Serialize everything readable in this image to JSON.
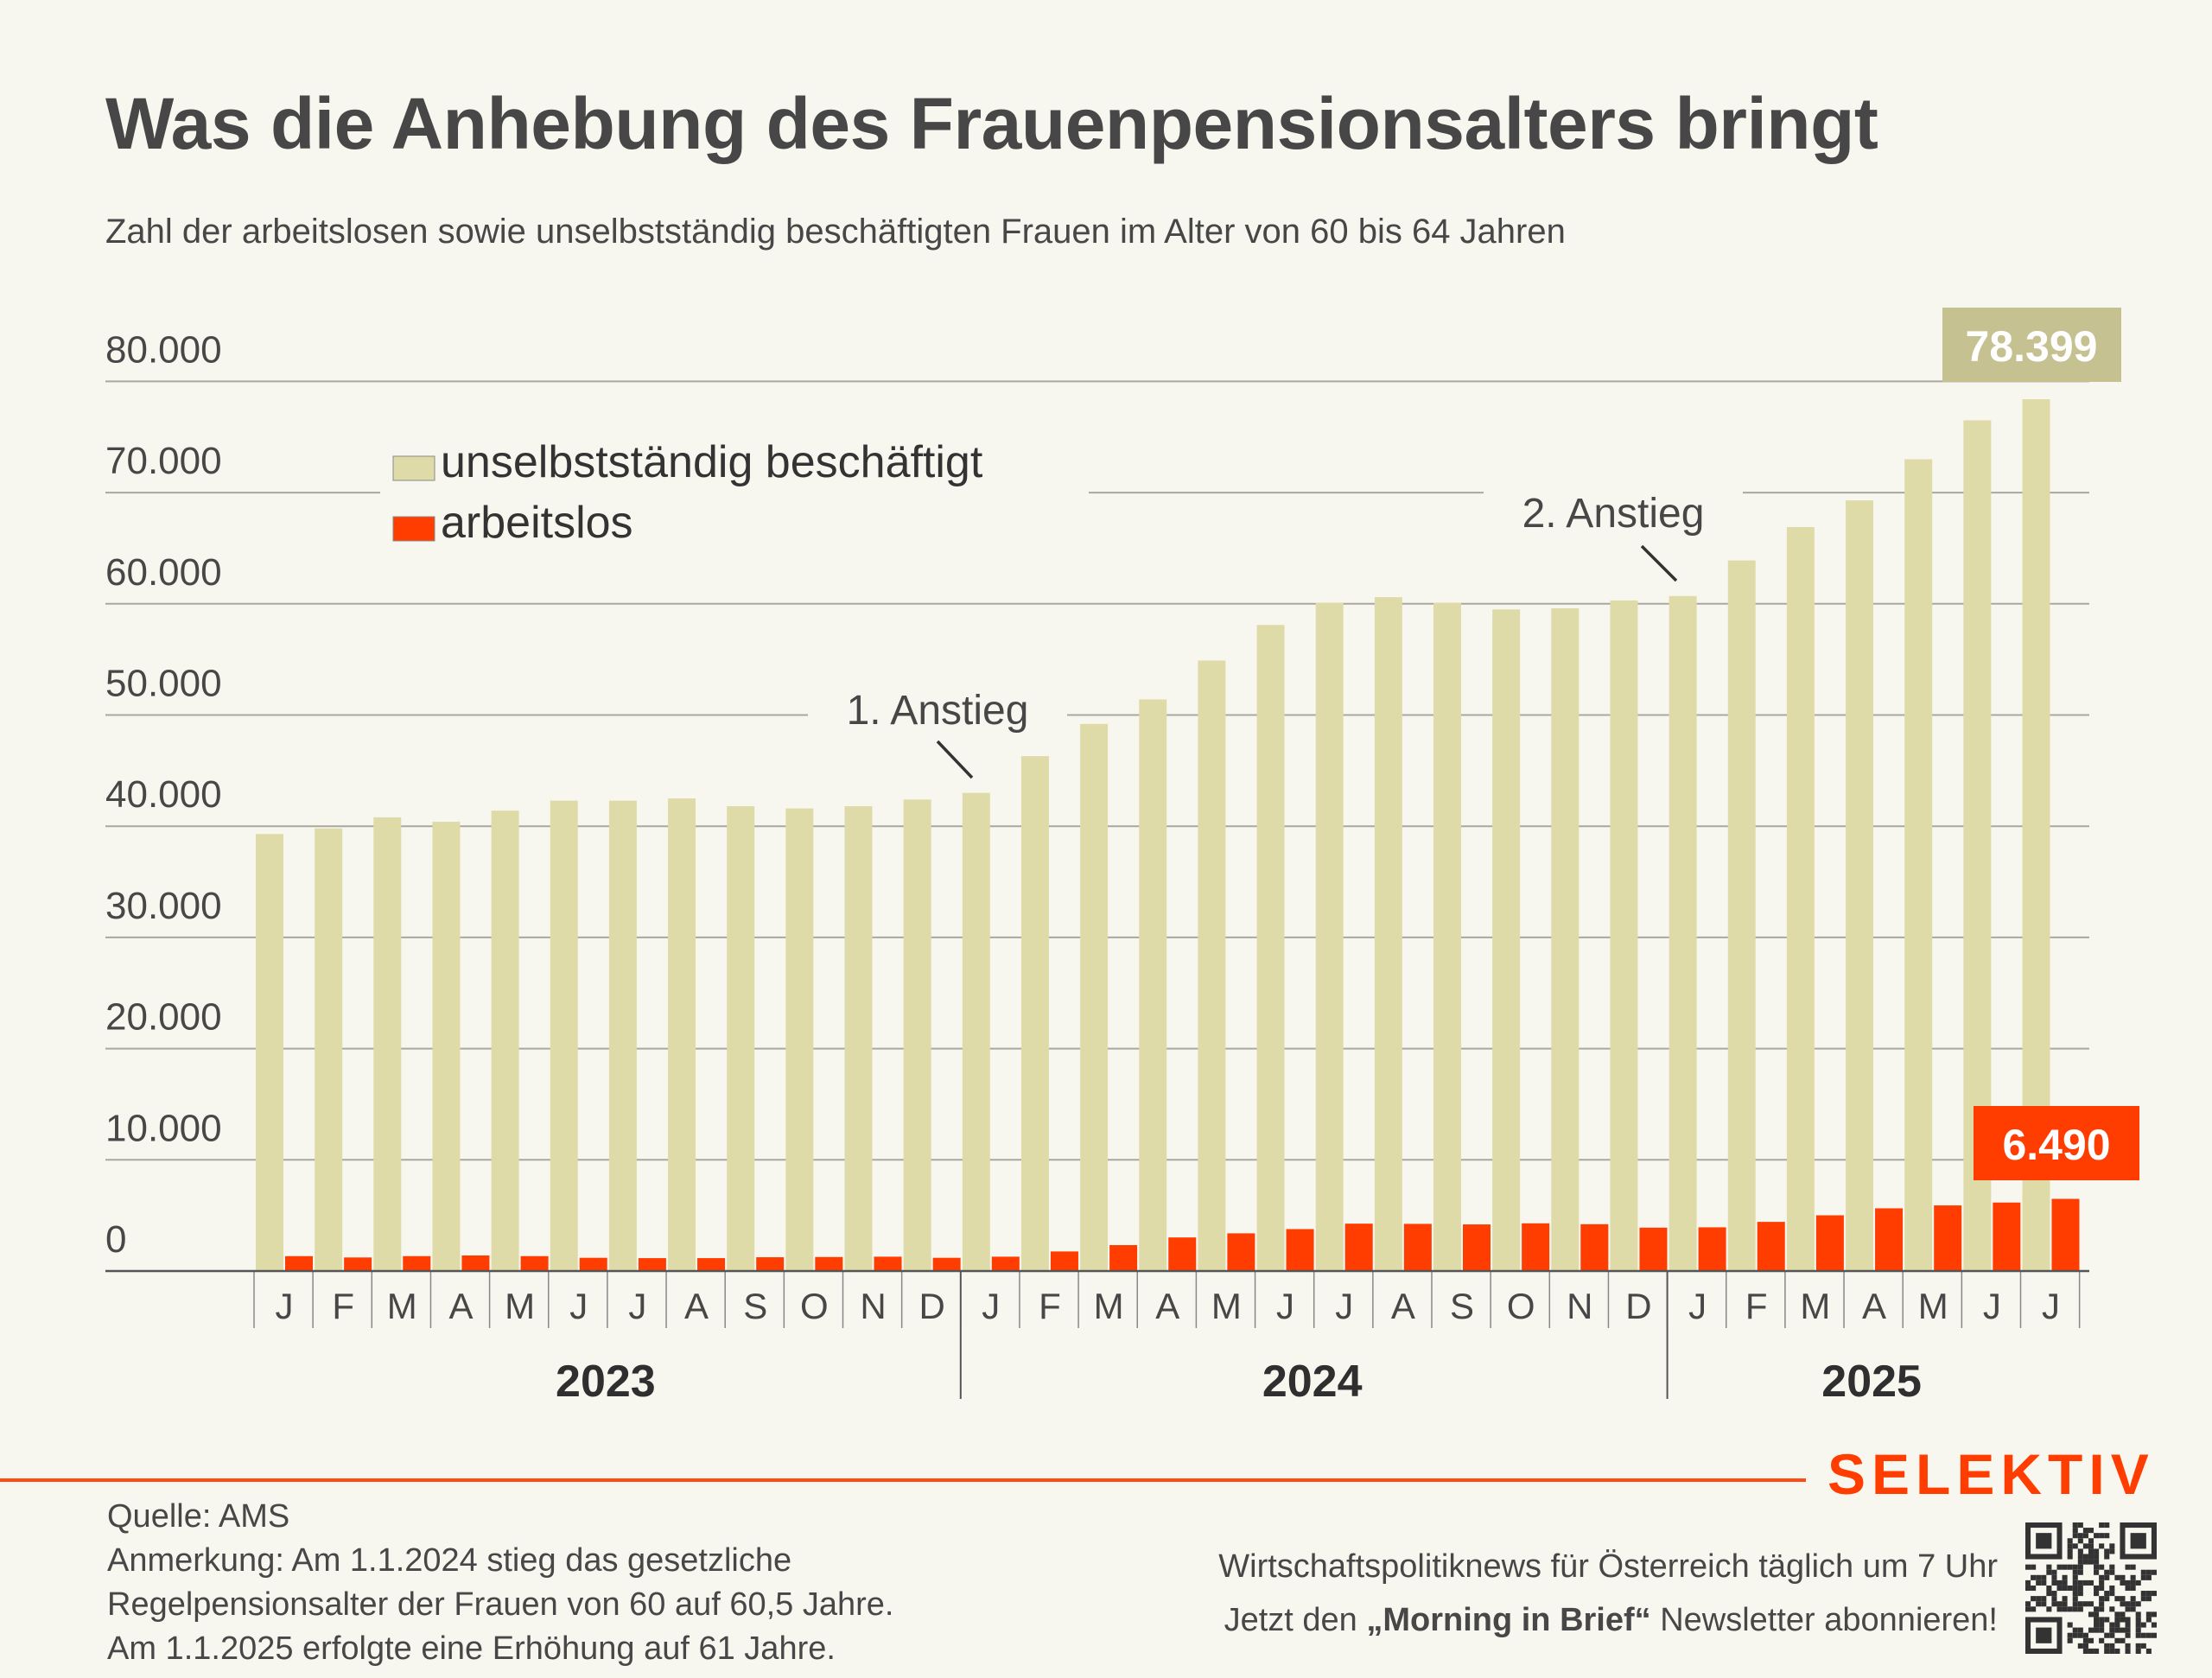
{
  "title": "Was die Anhebung des Frauenpensionsalters bringt",
  "subtitle": "Zahl der arbeitslosen sowie unselbstständig beschäftigten Frauen im Alter von 60 bis 64 Jahren",
  "colors": {
    "employed": "#dfdba9",
    "unemployed": "#ff3d00",
    "employed_label_bg": "#c5c190",
    "brand": "#ff3d00",
    "background": "#f8f7ef"
  },
  "chart_data": {
    "type": "bar",
    "title": "Was die Anhebung des Frauenpensionsalters bringt",
    "xlabel": "",
    "ylabel": "",
    "ylim": [
      0,
      80000
    ],
    "yticks": [
      0,
      10000,
      20000,
      30000,
      40000,
      50000,
      60000,
      70000,
      80000
    ],
    "ytick_labels": [
      "0",
      "10.000",
      "20.000",
      "30.000",
      "40.000",
      "50.000",
      "60.000",
      "70.000",
      "80.000"
    ],
    "grid": true,
    "legend_position": "top-left",
    "categories": [
      "J",
      "F",
      "M",
      "A",
      "M",
      "J",
      "J",
      "A",
      "S",
      "O",
      "N",
      "D",
      "J",
      "F",
      "M",
      "A",
      "M",
      "J",
      "J",
      "A",
      "S",
      "O",
      "N",
      "D",
      "J",
      "F",
      "M",
      "A",
      "M",
      "J",
      "J"
    ],
    "year_groups": [
      {
        "label": "2023",
        "start": 0,
        "end": 11
      },
      {
        "label": "2024",
        "start": 12,
        "end": 23
      },
      {
        "label": "2025",
        "start": 24,
        "end": 30
      }
    ],
    "series": [
      {
        "name": "unselbstständig beschäftigt",
        "values": [
          39300,
          39800,
          40800,
          40400,
          41400,
          42300,
          42300,
          42500,
          41800,
          41600,
          41800,
          42400,
          43000,
          46300,
          49200,
          51400,
          54900,
          58100,
          60100,
          60600,
          60100,
          59500,
          59600,
          60300,
          60700,
          63900,
          66900,
          69300,
          73000,
          76500,
          78399
        ]
      },
      {
        "name": "arbeitslos",
        "values": [
          1340,
          1220,
          1340,
          1400,
          1340,
          1190,
          1160,
          1160,
          1240,
          1260,
          1290,
          1190,
          1290,
          1760,
          2330,
          3020,
          3390,
          3770,
          4260,
          4240,
          4190,
          4290,
          4210,
          3900,
          3930,
          4420,
          5010,
          5640,
          5900,
          6160,
          6490
        ]
      }
    ],
    "data_labels": [
      {
        "series": "unselbstständig beschäftigt",
        "index": 30,
        "text": "78.399"
      },
      {
        "series": "arbeitslos",
        "index": 30,
        "text": "6.490"
      }
    ],
    "annotations": [
      {
        "text": "1. Anstieg",
        "index": 12
      },
      {
        "text": "2. Anstieg",
        "index": 24
      }
    ]
  },
  "footer": {
    "source": "Quelle: AMS",
    "note_lines": [
      "Anmerkung: Am 1.1.2024 stieg das gesetzliche",
      "Regelpensionsalter der Frauen von 60 auf 60,5 Jahre.",
      "Am 1.1.2025 erfolgte eine Erhöhung auf 61 Jahre."
    ],
    "brand": "SELEKTIV",
    "promo_line1": "Wirtschaftspolitiknews für Österreich täglich um 7 Uhr",
    "promo_line2_pre": "Jetzt den ",
    "promo_line2_bold": "„Morning in Brief“",
    "promo_line2_post": " Newsletter abonnieren!",
    "qr_icon": "qr-code-icon"
  }
}
